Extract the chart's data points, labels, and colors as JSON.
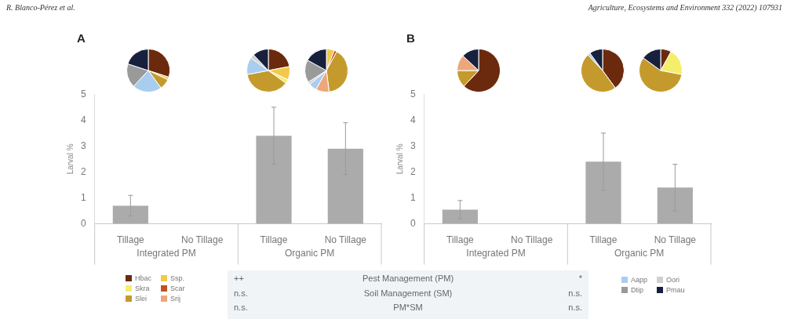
{
  "chart_data": [
    {
      "type": "other",
      "annotations": [
        "R. Blanco-Pérez et al.",
        "Agriculture, Ecosystems and Environment 332 (2022) 107931"
      ]
    },
    {
      "type": "bar",
      "title": "A",
      "ylabel": "Larval %",
      "categories": [
        "Tillage",
        "No Tillage",
        "Tillage",
        "No Tillage"
      ],
      "annotations": [
        "Integrated PM",
        "Organic PM"
      ],
      "values": [
        0.7,
        0,
        3.4,
        2.9
      ],
      "errors": [
        0.4,
        null,
        1.1,
        1.0
      ],
      "color": "#ababab",
      "ylim": [
        0,
        5
      ],
      "yticks": [
        0,
        1,
        2,
        3,
        4,
        5
      ]
    },
    {
      "type": "pie",
      "categories": [
        "Hbac",
        "Ssp.",
        "Skra",
        "Scar",
        "Slei",
        "Srij",
        "Aapp",
        "Oori",
        "Dtip",
        "Pmau"
      ],
      "values": [
        30,
        2,
        0,
        0,
        8,
        0,
        22,
        0,
        18,
        20
      ],
      "colors": [
        "#6b2a0e",
        "#f2c94c",
        "#f5ee6a",
        "#c2521f",
        "#c49a2c",
        "#eda77a",
        "#a9cdee",
        "#d0d0d0",
        "#9a9a9a",
        "#17213d"
      ],
      "legend": "bottom"
    },
    {
      "type": "pie",
      "categories": [
        null,
        null,
        null,
        null,
        null,
        null,
        null,
        null,
        null,
        null
      ],
      "values": [
        22,
        10,
        3,
        0,
        37,
        0,
        13,
        3,
        0,
        12
      ],
      "colors": [
        "#6b2a0e",
        "#f2c94c",
        "#f5ee6a",
        "#c2521f",
        "#c49a2c",
        "#eda77a",
        "#a9cdee",
        "#d0d0d0",
        "#9a9a9a",
        "#17213d"
      ]
    },
    {
      "type": "pie",
      "categories": [
        null,
        null,
        null,
        null,
        null,
        null,
        null,
        null,
        null,
        null
      ],
      "values": [
        0,
        6,
        0,
        2,
        40,
        10,
        6,
        2,
        17,
        17
      ],
      "colors": [
        "#6b2a0e",
        "#f2c94c",
        "#f5ee6a",
        "#c2521f",
        "#c49a2c",
        "#eda77a",
        "#a9cdee",
        "#d0d0d0",
        "#9a9a9a",
        "#17213d"
      ]
    },
    {
      "type": "bar",
      "title": "B",
      "ylabel": "Larval %",
      "categories": [
        "Tillage",
        "No Tillage",
        "Tillage",
        "No Tillage"
      ],
      "annotations": [
        "Integrated PM",
        "Organic PM"
      ],
      "values": [
        0.55,
        0,
        2.4,
        1.4
      ],
      "errors": [
        0.35,
        null,
        1.1,
        0.9
      ],
      "color": "#ababab",
      "ylim": [
        0,
        5
      ],
      "yticks": [
        0,
        1,
        2,
        3,
        4,
        5
      ]
    },
    {
      "type": "pie",
      "categories": [
        null,
        null,
        null,
        null,
        null,
        null,
        null,
        null,
        null,
        null
      ],
      "values": [
        62,
        0,
        0,
        0,
        13,
        12,
        0,
        0,
        0,
        13
      ],
      "colors": [
        "#6b2a0e",
        "#f2c94c",
        "#f5ee6a",
        "#c2521f",
        "#c49a2c",
        "#eda77a",
        "#a9cdee",
        "#d0d0d0",
        "#9a9a9a",
        "#17213d"
      ]
    },
    {
      "type": "pie",
      "categories": [
        null,
        null,
        null,
        null,
        null,
        null,
        null,
        null,
        null,
        null
      ],
      "values": [
        40,
        0,
        0,
        0,
        48,
        0,
        2,
        0,
        0,
        10
      ],
      "colors": [
        "#6b2a0e",
        "#f2c94c",
        "#f5ee6a",
        "#c2521f",
        "#c49a2c",
        "#eda77a",
        "#a9cdee",
        "#d0d0d0",
        "#9a9a9a",
        "#17213d"
      ]
    },
    {
      "type": "pie",
      "categories": [
        null,
        null,
        null,
        null,
        null,
        null,
        null,
        null,
        null,
        null
      ],
      "values": [
        8,
        0,
        20,
        0,
        57,
        0,
        0,
        0,
        0,
        15
      ],
      "colors": [
        "#6b2a0e",
        "#f2c94c",
        "#f5ee6a",
        "#c2521f",
        "#c49a2c",
        "#eda77a",
        "#a9cdee",
        "#d0d0d0",
        "#9a9a9a",
        "#17213d"
      ]
    },
    {
      "type": "other",
      "annotations": [
        "++",
        "Pest Management (PM)",
        "*",
        "n.s.",
        "Soil Management (SM)",
        "n.s.",
        "n.s.",
        "PM*SM",
        "n.s."
      ]
    }
  ]
}
